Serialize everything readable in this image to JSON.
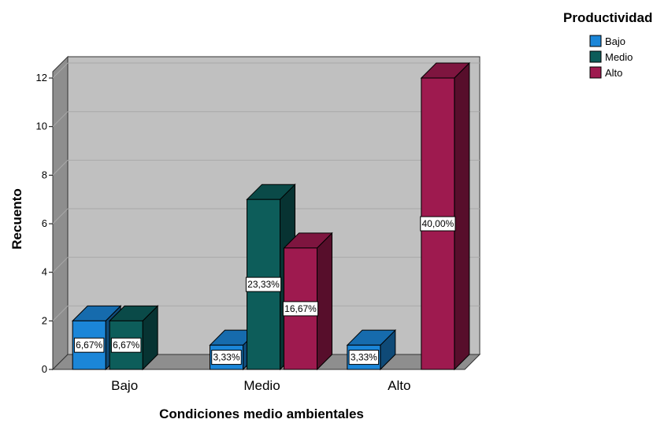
{
  "chart_data": {
    "type": "bar",
    "style": "3d-clustered",
    "categories": [
      "Bajo",
      "Medio",
      "Alto"
    ],
    "series": [
      {
        "name": "Bajo",
        "values": [
          2,
          1,
          1
        ],
        "labels": [
          "6,67%",
          "3,33%",
          "3,33%"
        ],
        "color": "#1b86d8"
      },
      {
        "name": "Medio",
        "values": [
          2,
          7,
          0
        ],
        "labels": [
          "6,67%",
          "23,33%",
          ""
        ],
        "color": "#0d5d5a"
      },
      {
        "name": "Alto",
        "values": [
          0,
          5,
          12
        ],
        "labels": [
          "",
          "16,67%",
          "40,00%"
        ],
        "color": "#9e1a4f"
      }
    ],
    "xlabel": "Condiciones medio ambientales",
    "ylabel": "Recuento",
    "ylim": [
      0,
      12
    ],
    "yticks": [
      "0",
      "2",
      "4",
      "6",
      "8",
      "10",
      "12"
    ],
    "legend_title": "Productividad",
    "legend_position": "top-right",
    "grid": true,
    "background_color": "#c0c0c0"
  }
}
